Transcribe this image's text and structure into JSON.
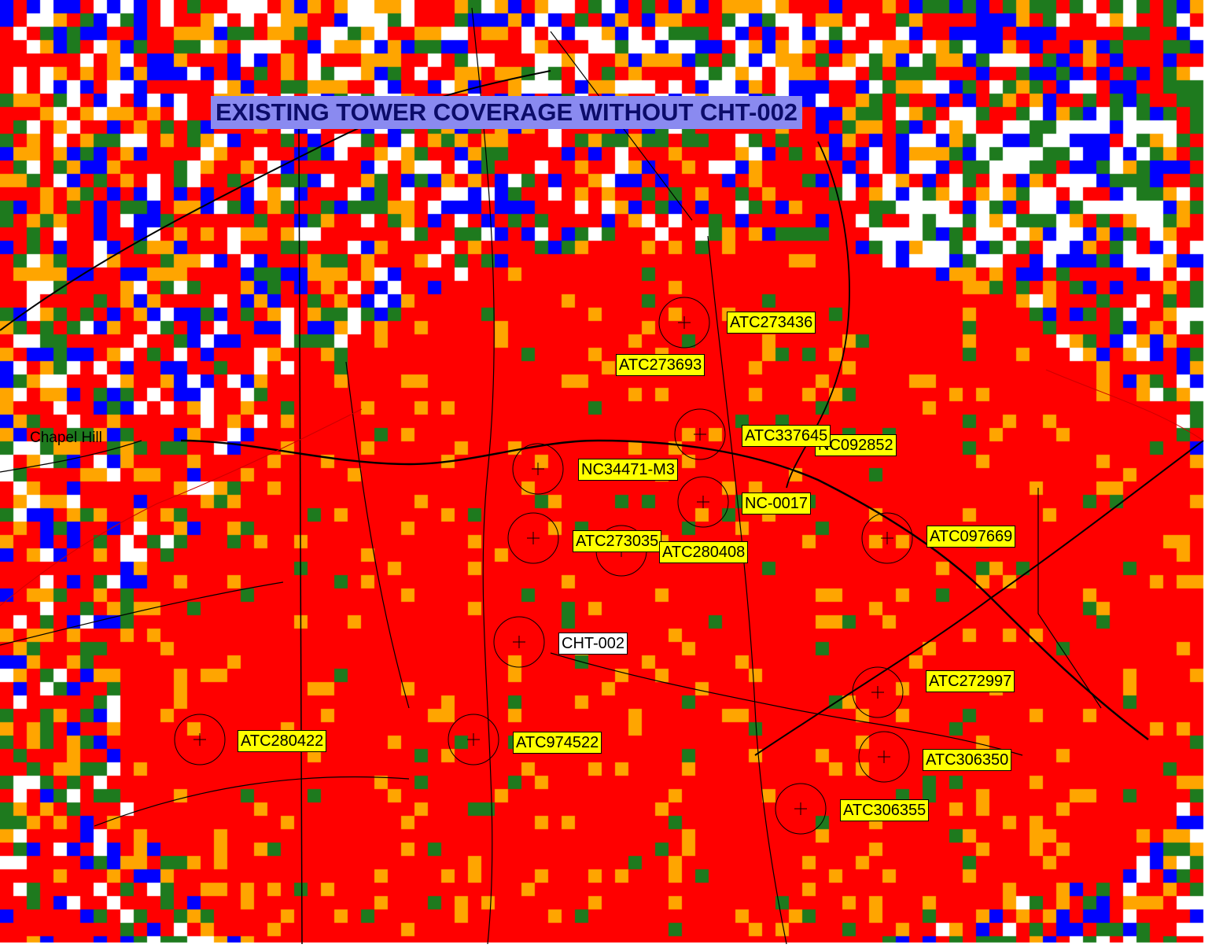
{
  "title": "EXISTING TOWER COVERAGE WITHOUT CHT-002",
  "coverage_colors": {
    "strong": "#ff0000",
    "good": "#ffa500",
    "fair": "#1e7a1e",
    "weak": "#0000ff",
    "none": "#ffffff"
  },
  "town_labels": {
    "chapel_hill": "Chapel Hill"
  },
  "towers": [
    {
      "id": "ATC273436",
      "style": "yellow"
    },
    {
      "id": "ATC273693",
      "style": "yellow"
    },
    {
      "id": "ATC337645",
      "style": "yellow"
    },
    {
      "id": "NC092852",
      "display": "NC092852",
      "style": "yellow"
    },
    {
      "id": "NC34471-M3",
      "style": "yellow"
    },
    {
      "id": "NC-0017",
      "style": "yellow"
    },
    {
      "id": "ATC097669",
      "style": "yellow"
    },
    {
      "id": "ATC273035",
      "style": "yellow"
    },
    {
      "id": "ATC280408",
      "style": "yellow"
    },
    {
      "id": "CHT-002",
      "style": "white"
    },
    {
      "id": "ATC272997",
      "style": "yellow"
    },
    {
      "id": "ATC280422",
      "style": "yellow"
    },
    {
      "id": "ATC974522",
      "style": "yellow"
    },
    {
      "id": "ATC306350",
      "style": "yellow"
    },
    {
      "id": "ATC306355",
      "style": "yellow"
    }
  ]
}
